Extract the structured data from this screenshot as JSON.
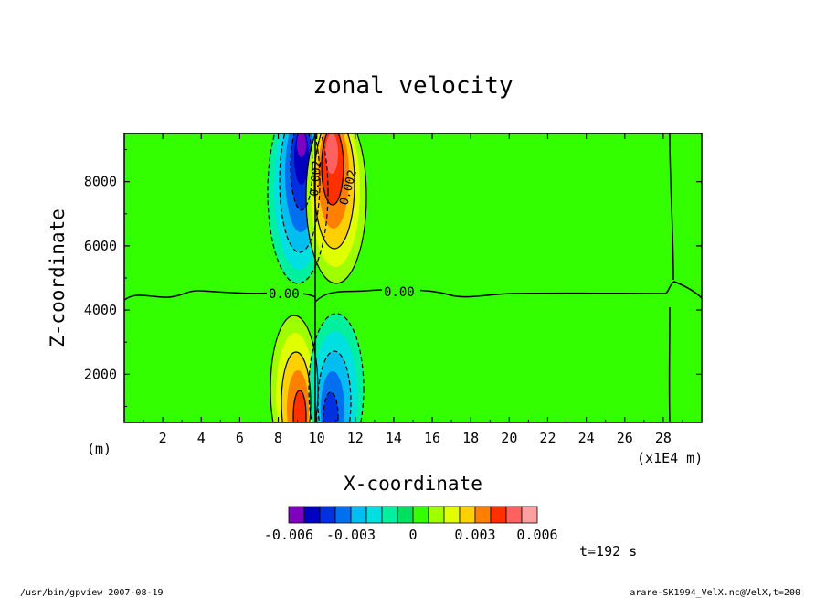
{
  "chart_data": {
    "type": "contour",
    "title": "zonal velocity",
    "xlabel": "X-coordinate",
    "ylabel": "Z-coordinate",
    "x_unit_label": "(m)",
    "x_scale_label": "(x1E4 m)",
    "xlim": [
      0,
      30
    ],
    "ylim": [
      500,
      9500
    ],
    "x_ticks": [
      "2",
      "4",
      "6",
      "8",
      "10",
      "12",
      "14",
      "16",
      "18",
      "20",
      "22",
      "24",
      "26",
      "28"
    ],
    "y_ticks": [
      "2000",
      "4000",
      "6000",
      "8000"
    ],
    "contour_labels": [
      "0.00",
      "0.00",
      "0.002",
      "0.002"
    ],
    "features": [
      {
        "name": "upper-negative-lobe",
        "sign": "negative",
        "x_center": 9.2,
        "z_center": 8000,
        "peak": -0.006
      },
      {
        "name": "upper-positive-lobe",
        "sign": "positive",
        "x_center": 10.8,
        "z_center": 8500,
        "peak": 0.006
      },
      {
        "name": "lower-positive-lobe",
        "sign": "positive",
        "x_center": 9.2,
        "z_center": 1200,
        "peak": 0.006
      },
      {
        "name": "lower-negative-lobe",
        "sign": "negative",
        "x_center": 10.8,
        "z_center": 1200,
        "peak": -0.006
      }
    ],
    "colorbar": {
      "colors": [
        "#7f00bf",
        "#0000bf",
        "#0030e0",
        "#0070f0",
        "#00bff0",
        "#00e0e0",
        "#00f0a0",
        "#00e060",
        "#33ff00",
        "#9fff00",
        "#e0ff00",
        "#ffd000",
        "#ff8000",
        "#ff3000",
        "#ff6060",
        "#ff9fa0"
      ],
      "tick_labels": [
        "-0.006",
        "-0.003",
        "0",
        "0.003",
        "0.006"
      ]
    },
    "field_color": "#33ff00"
  },
  "annotations": {
    "time": "t=192 s",
    "footer_left": "/usr/bin/gpview   2007-08-19",
    "footer_right": "arare-SK1994_VelX.nc@VelX,t=200"
  }
}
